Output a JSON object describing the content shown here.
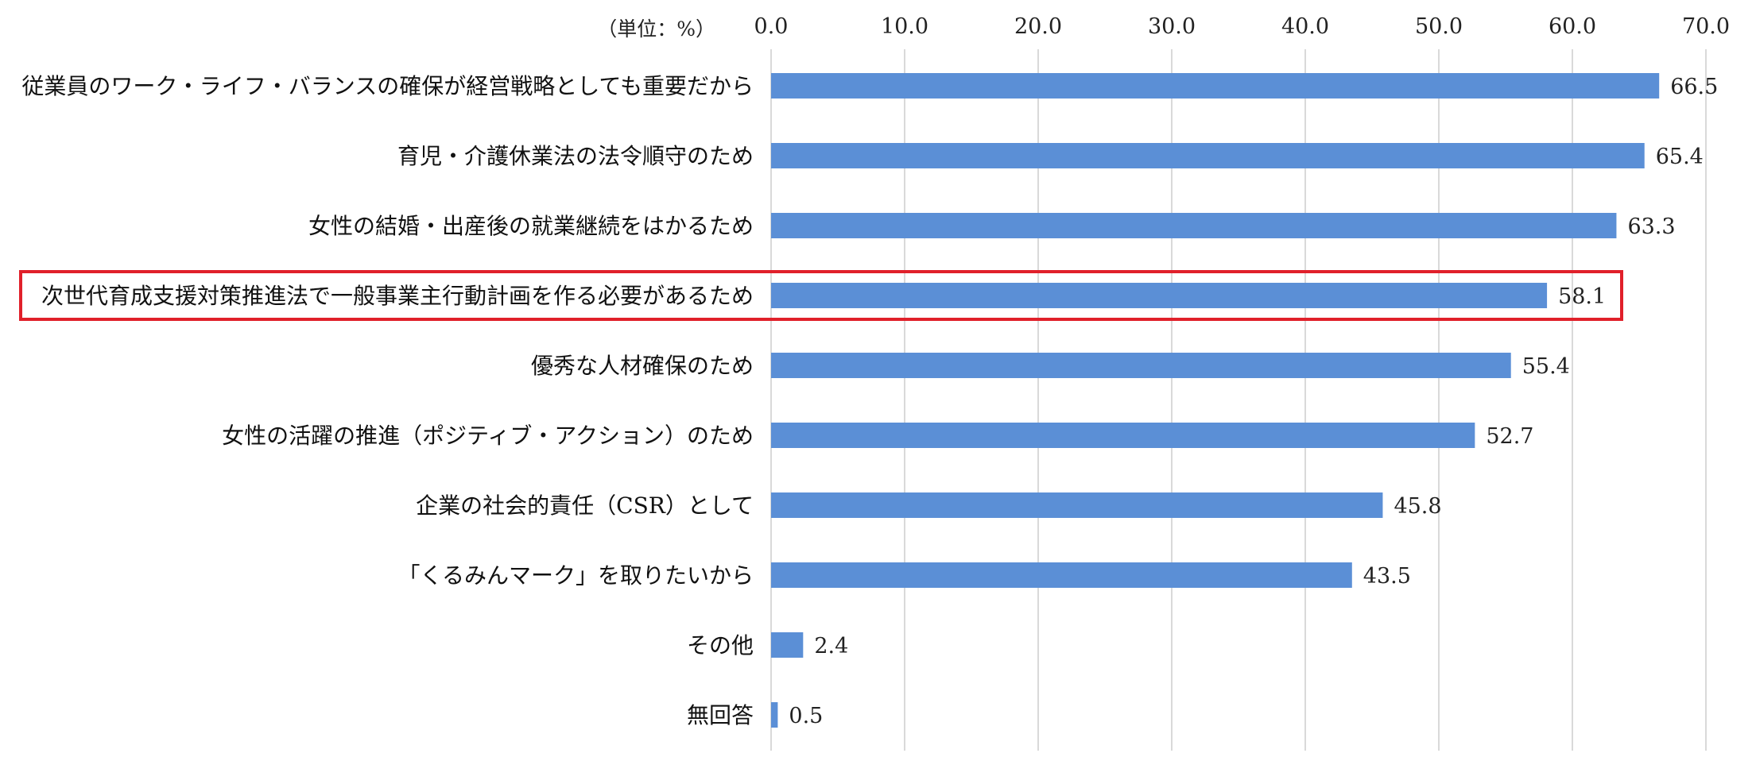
{
  "chart_data": {
    "type": "bar",
    "orientation": "horizontal",
    "unit_label": "（単位：%）",
    "xlim": [
      0,
      70
    ],
    "tick_values": [
      0,
      10,
      20,
      30,
      40,
      50,
      60,
      70
    ],
    "tick_labels": [
      "0.0",
      "10.0",
      "20.0",
      "30.0",
      "40.0",
      "50.0",
      "60.0",
      "70.0"
    ],
    "axis_position": "top",
    "grid": true,
    "categories": [
      "従業員のワーク・ライフ・バランスの確保が経営戦略としても重要だから",
      "育児・介護休業法の法令順守のため",
      "女性の結婚・出産後の就業継続をはかるため",
      "次世代育成支援対策推進法で一般事業主行動計画を作る必要があるため",
      "優秀な人材確保のため",
      "女性の活躍の推進（ポジティブ・アクション）のため",
      "企業の社会的責任（CSR）として",
      "「くるみんマーク」を取りたいから",
      "その他",
      "無回答"
    ],
    "values": [
      66.5,
      65.4,
      63.3,
      58.1,
      55.4,
      52.7,
      45.8,
      43.5,
      2.4,
      0.5
    ],
    "value_labels": [
      "66.5",
      "65.4",
      "63.3",
      "58.1",
      "55.4",
      "52.7",
      "45.8",
      "43.5",
      "2.4",
      "0.5"
    ],
    "highlighted_index": 3,
    "bar_color": "#5B8FD6",
    "highlight_color": "#E0202A"
  }
}
